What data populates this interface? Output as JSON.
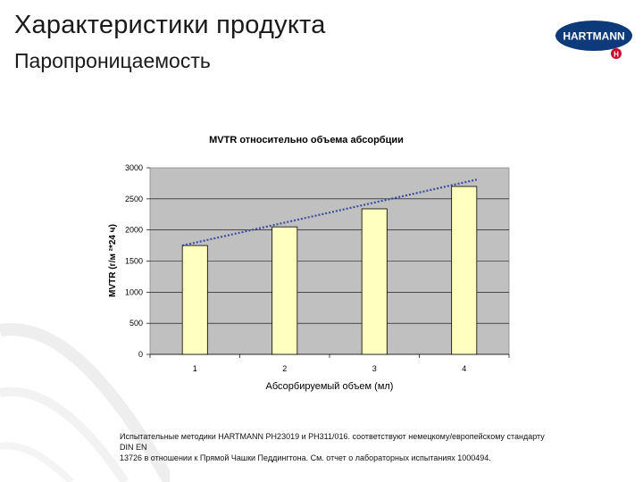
{
  "header": {
    "title": "Характеристики продукта",
    "subtitle": "Паропроницаемость"
  },
  "logo": {
    "text": "HARTMANN",
    "badge_text": "H",
    "brand_color": "#0d3a7a",
    "badge_color": "#c8102e"
  },
  "chart_data": {
    "type": "bar",
    "title": "MVTR относительно объема абсорбции",
    "xlabel": "Абсорбируемый объем (мл)",
    "ylabel": "MVTR (г/м ²*24 ч)",
    "categories": [
      "1",
      "2",
      "3",
      "4"
    ],
    "values": [
      1750,
      2050,
      2340,
      2700
    ],
    "ylim": [
      0,
      3000
    ],
    "yticks": [
      0,
      500,
      1000,
      1500,
      2000,
      2500,
      3000
    ],
    "grid": true,
    "legend": "none",
    "trendline": {
      "style": "dotted",
      "color": "#3a4ba0",
      "start": 1750,
      "end": 2810
    },
    "colors": {
      "bar_fill": "#ffffc0",
      "bar_stroke": "#000000",
      "plot_bg": "#c0c0c0"
    }
  },
  "footnote": {
    "line1": "Испытательные методики HARTMANN PH23019 и PH311/016. соответствуют немецкому/европейскому стандарту DIN EN",
    "line2": "13726 в отношении к Прямой Чашки Педдингтона. См. отчет о лабораторных испытаниях 1000494."
  }
}
